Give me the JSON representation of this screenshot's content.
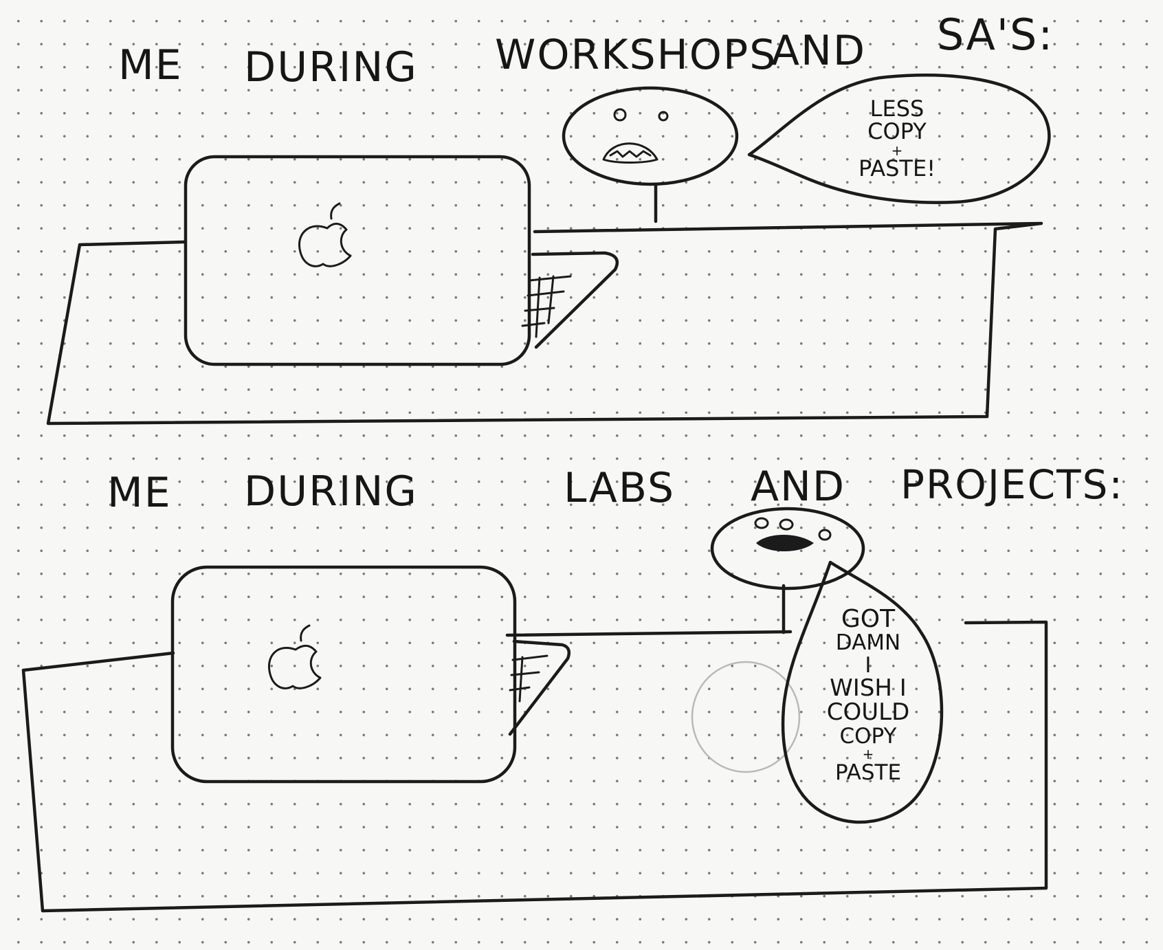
{
  "panel_1": {
    "heading_words": [
      "ME",
      "DURING",
      "WORKSHOPS",
      "AND",
      "SA'S:"
    ],
    "speech_lines": [
      "LESS",
      "COPY",
      "+",
      "PASTE!"
    ]
  },
  "panel_2": {
    "heading_words": [
      "ME",
      "DURING",
      "LABS",
      "AND",
      "PROJECTS:"
    ],
    "speech_lines": [
      "GOT",
      "DAMN",
      "I",
      "WISH I",
      "COULD",
      "COPY",
      "+",
      "PASTE"
    ]
  },
  "icons": {
    "laptop_logo": "apple-logo-icon",
    "face": "face-icon",
    "keyboard": "keyboard-icon"
  },
  "colors": {
    "paper": "#f7f7f5",
    "ink": "#1b1b1b",
    "dots": "#7a7a7a"
  }
}
